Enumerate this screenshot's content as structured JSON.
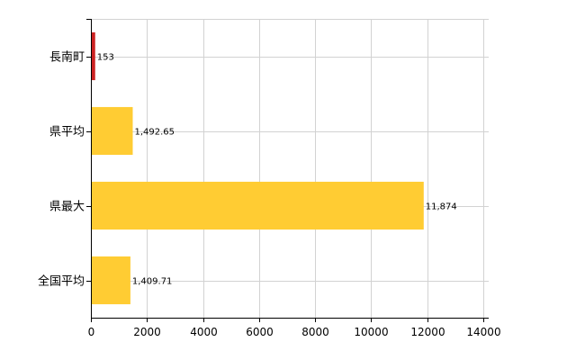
{
  "chart_data": {
    "type": "bar",
    "orientation": "horizontal",
    "categories": [
      "長南町",
      "県平均",
      "県最大",
      "全国平均"
    ],
    "values": [
      153,
      1492.65,
      11874,
      1409.71
    ],
    "data_labels": [
      "153",
      "1,492.65",
      "11,874",
      "1,409.71"
    ],
    "bar_colors": [
      "#cc2222",
      "#ffcc33",
      "#ffcc33",
      "#ffcc33"
    ],
    "xlim": [
      0,
      14000
    ],
    "xticks": [
      0,
      2000,
      4000,
      6000,
      8000,
      10000,
      12000,
      14000
    ],
    "xtick_labels": [
      "0",
      "2000",
      "4000",
      "6000",
      "8000",
      "10000",
      "12000",
      "14000"
    ],
    "grid": true,
    "legend": "none",
    "title": "",
    "xlabel": "",
    "ylabel": ""
  }
}
